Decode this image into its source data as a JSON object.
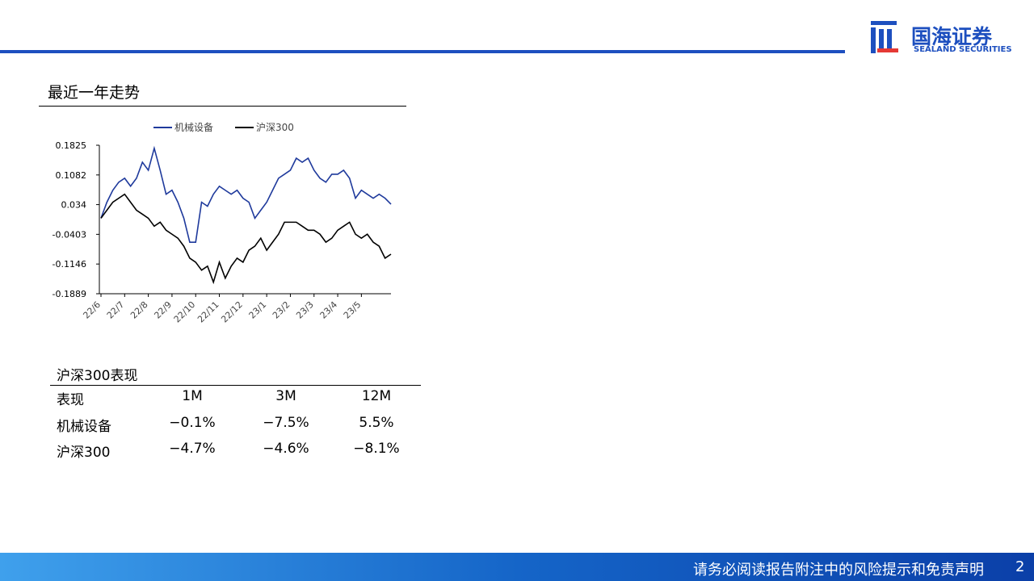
{
  "header": {
    "brand": "国海证券",
    "brand_en": "SEALAND SECURITIES"
  },
  "section_title": "最近一年走势",
  "chart_data": {
    "type": "line",
    "categories": [
      "22/6",
      null,
      null,
      null,
      "22/7",
      null,
      null,
      null,
      "22/8",
      null,
      null,
      null,
      "22/9",
      null,
      null,
      null,
      "22/10",
      null,
      null,
      null,
      "22/11",
      null,
      null,
      null,
      "22/12",
      null,
      null,
      null,
      "23/1",
      null,
      null,
      null,
      "23/2",
      null,
      null,
      null,
      "23/3",
      null,
      null,
      null,
      "23/4",
      null,
      null,
      null,
      "23/5",
      null,
      null,
      null,
      null,
      null
    ],
    "series": [
      {
        "name": "机械设备",
        "color": "#1f3a9c",
        "values": [
          0.0,
          0.04,
          0.07,
          0.09,
          0.1,
          0.08,
          0.1,
          0.14,
          0.12,
          0.175,
          0.12,
          0.06,
          0.07,
          0.04,
          0.0,
          -0.06,
          -0.06,
          0.04,
          0.03,
          0.06,
          0.08,
          0.07,
          0.06,
          0.07,
          0.05,
          0.04,
          0.0,
          0.02,
          0.04,
          0.07,
          0.1,
          0.11,
          0.12,
          0.15,
          0.14,
          0.15,
          0.12,
          0.1,
          0.09,
          0.11,
          0.11,
          0.12,
          0.1,
          0.05,
          0.07,
          0.06,
          0.05,
          0.06,
          0.05,
          0.035
        ]
      },
      {
        "name": "沪深300",
        "color": "#000000",
        "values": [
          0.0,
          0.02,
          0.04,
          0.05,
          0.06,
          0.04,
          0.02,
          0.01,
          0.0,
          -0.02,
          -0.01,
          -0.03,
          -0.04,
          -0.05,
          -0.07,
          -0.1,
          -0.11,
          -0.13,
          -0.12,
          -0.16,
          -0.11,
          -0.15,
          -0.12,
          -0.1,
          -0.11,
          -0.08,
          -0.07,
          -0.05,
          -0.08,
          -0.06,
          -0.04,
          -0.01,
          -0.01,
          -0.01,
          -0.02,
          -0.03,
          -0.03,
          -0.04,
          -0.06,
          -0.05,
          -0.03,
          -0.02,
          -0.01,
          -0.04,
          -0.05,
          -0.04,
          -0.06,
          -0.07,
          -0.1,
          -0.09
        ]
      }
    ],
    "ylim": [
      -0.1889,
      0.1825
    ],
    "yticks": [
      -0.1889,
      -0.1146,
      -0.0403,
      0.034,
      0.1082,
      0.1825
    ],
    "legend": "top"
  },
  "table": {
    "title": "沪深300表现",
    "header": [
      "表现",
      "1M",
      "3M",
      "12M"
    ],
    "rows": [
      [
        "机械设备",
        "−0.1%",
        "−7.5%",
        "5.5%"
      ],
      [
        "沪深300",
        "−4.7%",
        "−4.6%",
        "−8.1%"
      ]
    ]
  },
  "footer": {
    "disclaimer": "请务必阅读报告附注中的风险提示和免责声明",
    "page": "2"
  }
}
